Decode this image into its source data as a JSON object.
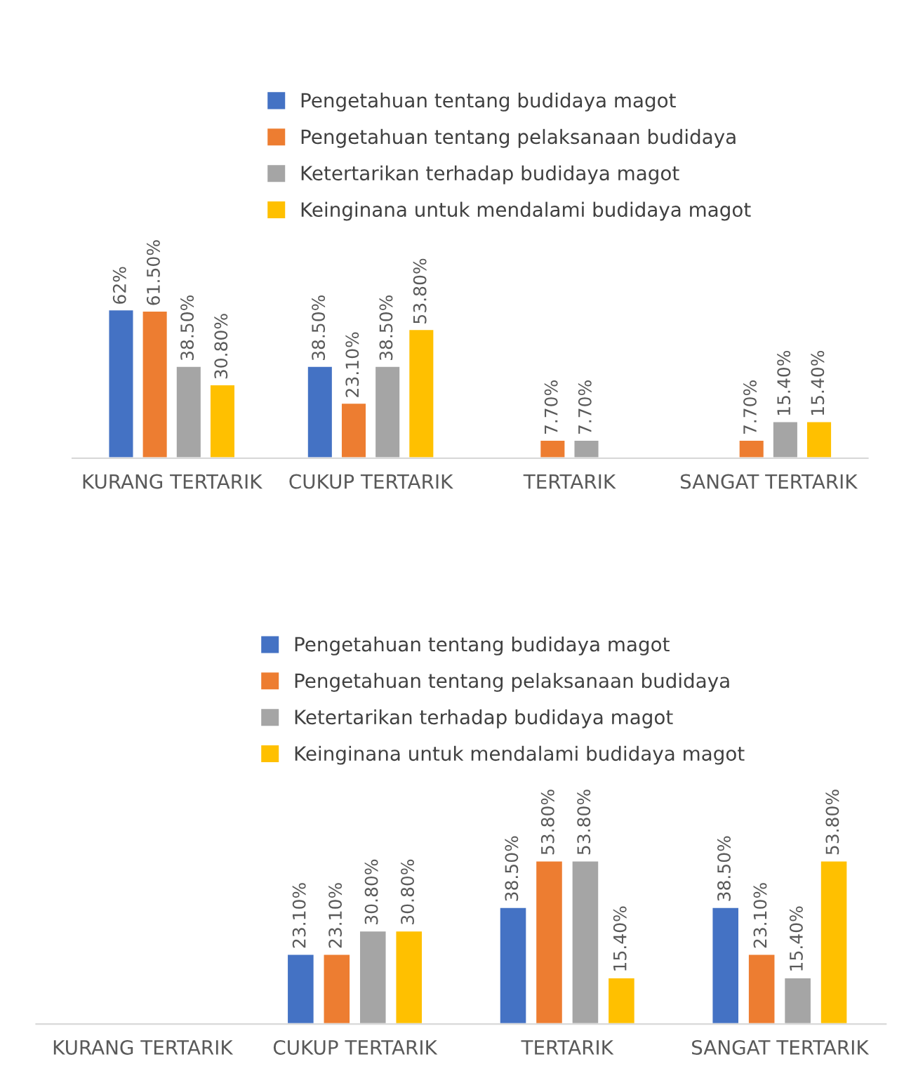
{
  "chart_data": [
    {
      "type": "bar",
      "categories": [
        "KURANG TERTARIK",
        "CUKUP TERTARIK",
        "TERTARIK",
        "SANGAT TERTARIK"
      ],
      "legend": "top",
      "series": [
        {
          "name": "Pengetahuan tentang budidaya magot",
          "color": "#4472c4",
          "values": [
            62,
            38.5,
            null,
            null
          ],
          "value_labels": [
            "62%",
            "38.50%",
            null,
            null
          ]
        },
        {
          "name": "Pengetahuan tentang pelaksanaan budidaya",
          "color": "#ed7d31",
          "values": [
            61.5,
            23.1,
            7.7,
            7.7
          ],
          "value_labels": [
            "61.50%",
            "23.10%",
            "7.70%",
            "7.70%"
          ]
        },
        {
          "name": "Ketertarikan terhadap budidaya magot",
          "color": "#a5a5a5",
          "values": [
            38.5,
            38.5,
            7.7,
            15.4
          ],
          "value_labels": [
            "38.50%",
            "38.50%",
            "7.70%",
            "15.40%"
          ]
        },
        {
          "name": "Keinginana untuk mendalami budidaya magot",
          "color": "#ffc000",
          "values": [
            30.8,
            53.8,
            null,
            15.4
          ],
          "value_labels": [
            "30.80%",
            "53.80%",
            null,
            "15.40%"
          ]
        }
      ]
    },
    {
      "type": "bar",
      "categories": [
        "KURANG TERTARIK",
        "CUKUP TERTARIK",
        "TERTARIK",
        "SANGAT TERTARIK"
      ],
      "legend": "top",
      "series": [
        {
          "name": "Pengetahuan tentang budidaya magot",
          "color": "#4472c4",
          "values": [
            null,
            23.1,
            38.5,
            38.5
          ],
          "value_labels": [
            null,
            "23.10%",
            "38.50%",
            "38.50%"
          ]
        },
        {
          "name": "Pengetahuan tentang pelaksanaan budidaya",
          "color": "#ed7d31",
          "values": [
            null,
            23.1,
            53.8,
            23.1
          ],
          "value_labels": [
            null,
            "23.10%",
            "53.80%",
            "23.10%"
          ]
        },
        {
          "name": "Ketertarikan terhadap budidaya magot",
          "color": "#a5a5a5",
          "values": [
            null,
            30.8,
            53.8,
            15.4
          ],
          "value_labels": [
            null,
            "30.80%",
            "53.80%",
            "15.40%"
          ]
        },
        {
          "name": "Keinginana untuk mendalami budidaya magot",
          "color": "#ffc000",
          "values": [
            null,
            30.8,
            15.4,
            53.8
          ],
          "value_labels": [
            null,
            "30.80%",
            "15.40%",
            "53.80%"
          ]
        }
      ]
    }
  ]
}
